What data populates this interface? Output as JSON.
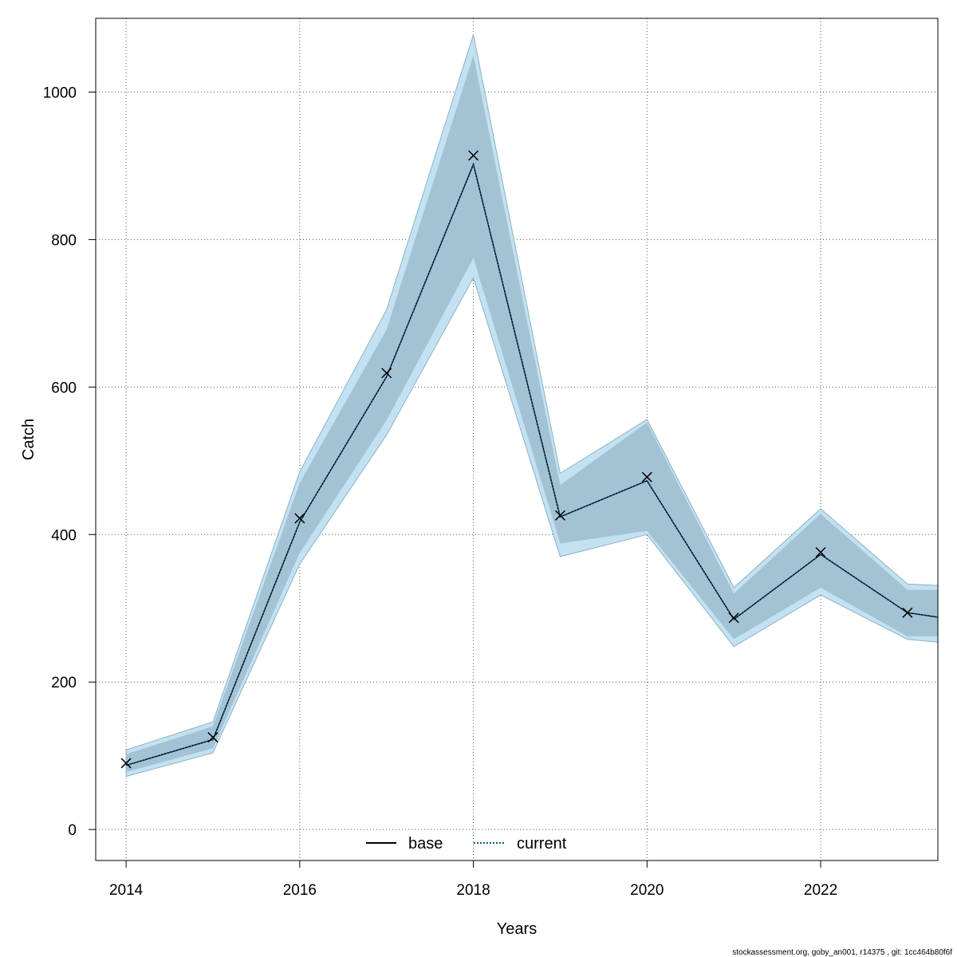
{
  "chart_data": {
    "type": "line",
    "xlabel": "Years",
    "ylabel": "Catch",
    "xlim": [
      2013.65,
      2023.35
    ],
    "ylim": [
      -42,
      1100
    ],
    "x_ticks": [
      2014,
      2016,
      2018,
      2020,
      2022
    ],
    "y_ticks": [
      0,
      200,
      400,
      600,
      800,
      1000
    ],
    "x_tick_labels": [
      "2014",
      "2016",
      "2018",
      "2020",
      "2022"
    ],
    "y_tick_labels": [
      "0",
      "200",
      "400",
      "600",
      "800",
      "1000"
    ],
    "grid": true,
    "legend_position": "bottom-center",
    "x": [
      2014,
      2015,
      2016,
      2017,
      2018,
      2019,
      2020,
      2021,
      2022,
      2023,
      2023.35
    ],
    "observed": {
      "x": [
        2014,
        2015,
        2016,
        2017,
        2018,
        2019,
        2020,
        2021,
        2022,
        2023
      ],
      "values": [
        90,
        125,
        422,
        619,
        914,
        426,
        478,
        287,
        376,
        294
      ]
    },
    "series": [
      {
        "name": "base",
        "color": "#000000",
        "line_style": "solid",
        "values": [
          87,
          122,
          417,
          614,
          902,
          424,
          473,
          285,
          373,
          294,
          288
        ],
        "ci_inner_lower": [
          78,
          110,
          375,
          555,
          775,
          388,
          405,
          258,
          328,
          262,
          262
        ],
        "ci_inner_upper": [
          102,
          140,
          470,
          678,
          1050,
          467,
          552,
          320,
          428,
          325,
          325
        ],
        "ci_outer_lower": [
          72,
          104,
          360,
          535,
          748,
          370,
          400,
          248,
          318,
          258,
          254
        ],
        "ci_outer_upper": [
          108,
          146,
          485,
          705,
          1078,
          483,
          556,
          328,
          435,
          333,
          331
        ],
        "ci_fill_color": "#a3c3d4",
        "ci_outer_fill_color": "#c2e2f2",
        "ci_border_color": "#8fb1c4"
      },
      {
        "name": "current",
        "color": "#0a5a86",
        "line_style": "dotted",
        "values": [
          87,
          122,
          417,
          614,
          902,
          424,
          473,
          285,
          373,
          294,
          288
        ]
      }
    ]
  },
  "legend": {
    "base": "base",
    "current": "current"
  },
  "footer": "stockassessment.org, goby_an001, r14375 , git: 1cc464b80f6f"
}
